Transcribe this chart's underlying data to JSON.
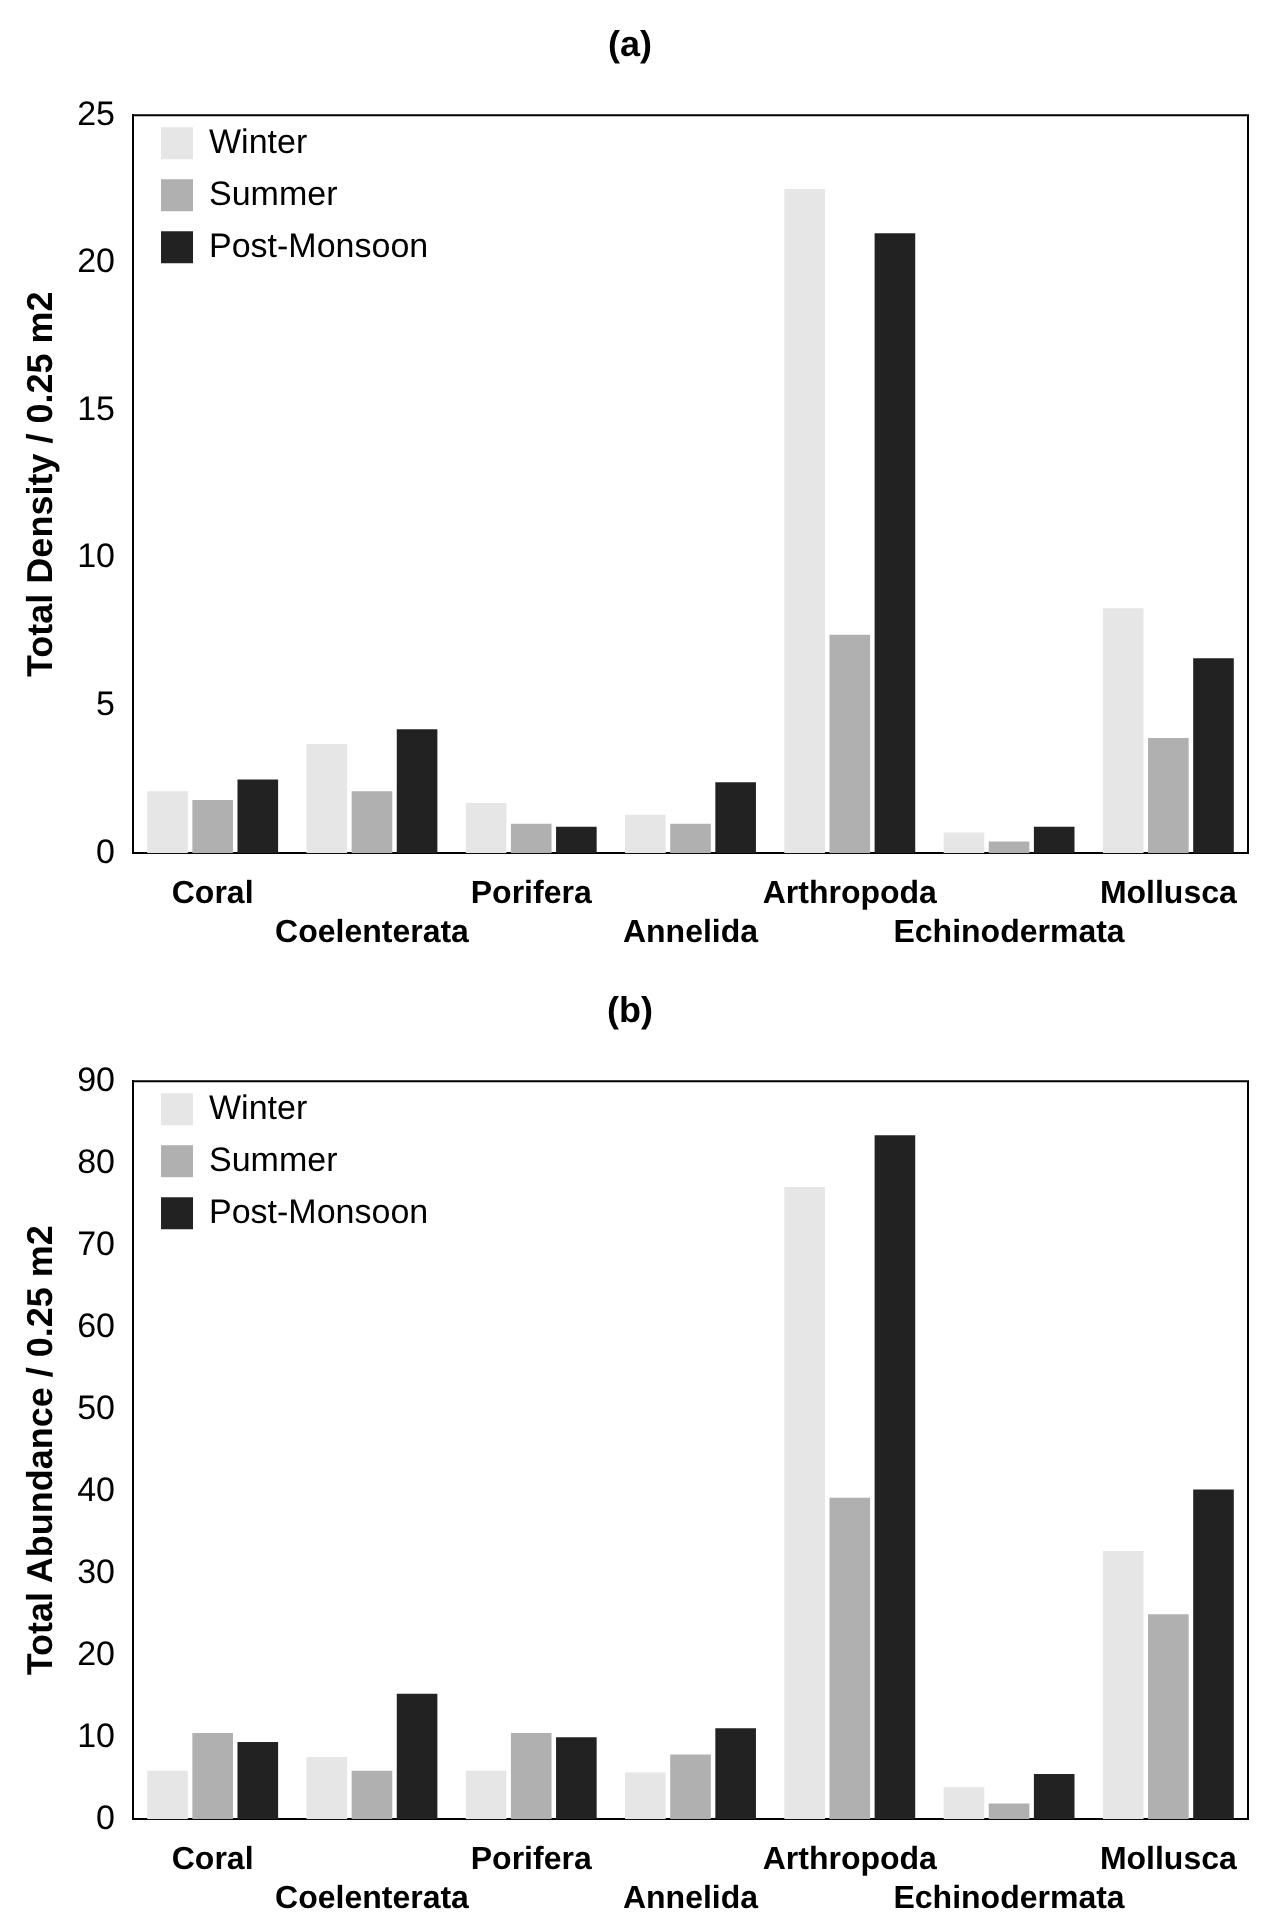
{
  "chart_data": [
    {
      "type": "bar",
      "title": "(a)",
      "ylabel": "Total Density / 0.25 m2",
      "categories": [
        "Coral",
        "Coelenterata",
        "Porifera",
        "Annelida",
        "Arthropoda",
        "Echinodermata",
        "Mollusca"
      ],
      "series": [
        {
          "name": "Winter",
          "color": "#e6e6e6",
          "values": [
            2.1,
            3.7,
            1.7,
            1.3,
            22.5,
            0.7,
            8.3
          ]
        },
        {
          "name": "Summer",
          "color": "#b0b0b0",
          "values": [
            1.8,
            2.1,
            1.0,
            1.0,
            7.4,
            0.4,
            3.9
          ]
        },
        {
          "name": "Post-Monsoon",
          "color": "#222222",
          "values": [
            2.5,
            4.2,
            0.9,
            2.4,
            21.0,
            0.9,
            6.6
          ]
        }
      ],
      "ylim": [
        0,
        25
      ],
      "yticks": [
        0,
        5,
        10,
        15,
        20,
        25
      ],
      "grid": false,
      "legend": "top left"
    },
    {
      "type": "bar",
      "title": "(b)",
      "ylabel": "Total Abundance / 0.25 m2",
      "categories": [
        "Coral",
        "Coelenterata",
        "Porifera",
        "Annelida",
        "Arthropoda",
        "Echinodermata",
        "Mollusca"
      ],
      "series": [
        {
          "name": "Winter",
          "color": "#e6e6e6",
          "values": [
            5.9,
            7.6,
            5.9,
            5.7,
            77.1,
            3.9,
            32.7
          ]
        },
        {
          "name": "Summer",
          "color": "#b0b0b0",
          "values": [
            10.5,
            5.9,
            10.5,
            7.9,
            39.2,
            1.9,
            25
          ]
        },
        {
          "name": "Post-Monsoon",
          "color": "#222222",
          "values": [
            9.4,
            15.3,
            10.0,
            11.1,
            83.4,
            5.5,
            40.2
          ]
        }
      ],
      "ylim": [
        0,
        90
      ],
      "yticks": [
        0,
        10,
        20,
        30,
        40,
        50,
        60,
        70,
        80,
        90
      ],
      "grid": false,
      "legend": "top left"
    }
  ]
}
